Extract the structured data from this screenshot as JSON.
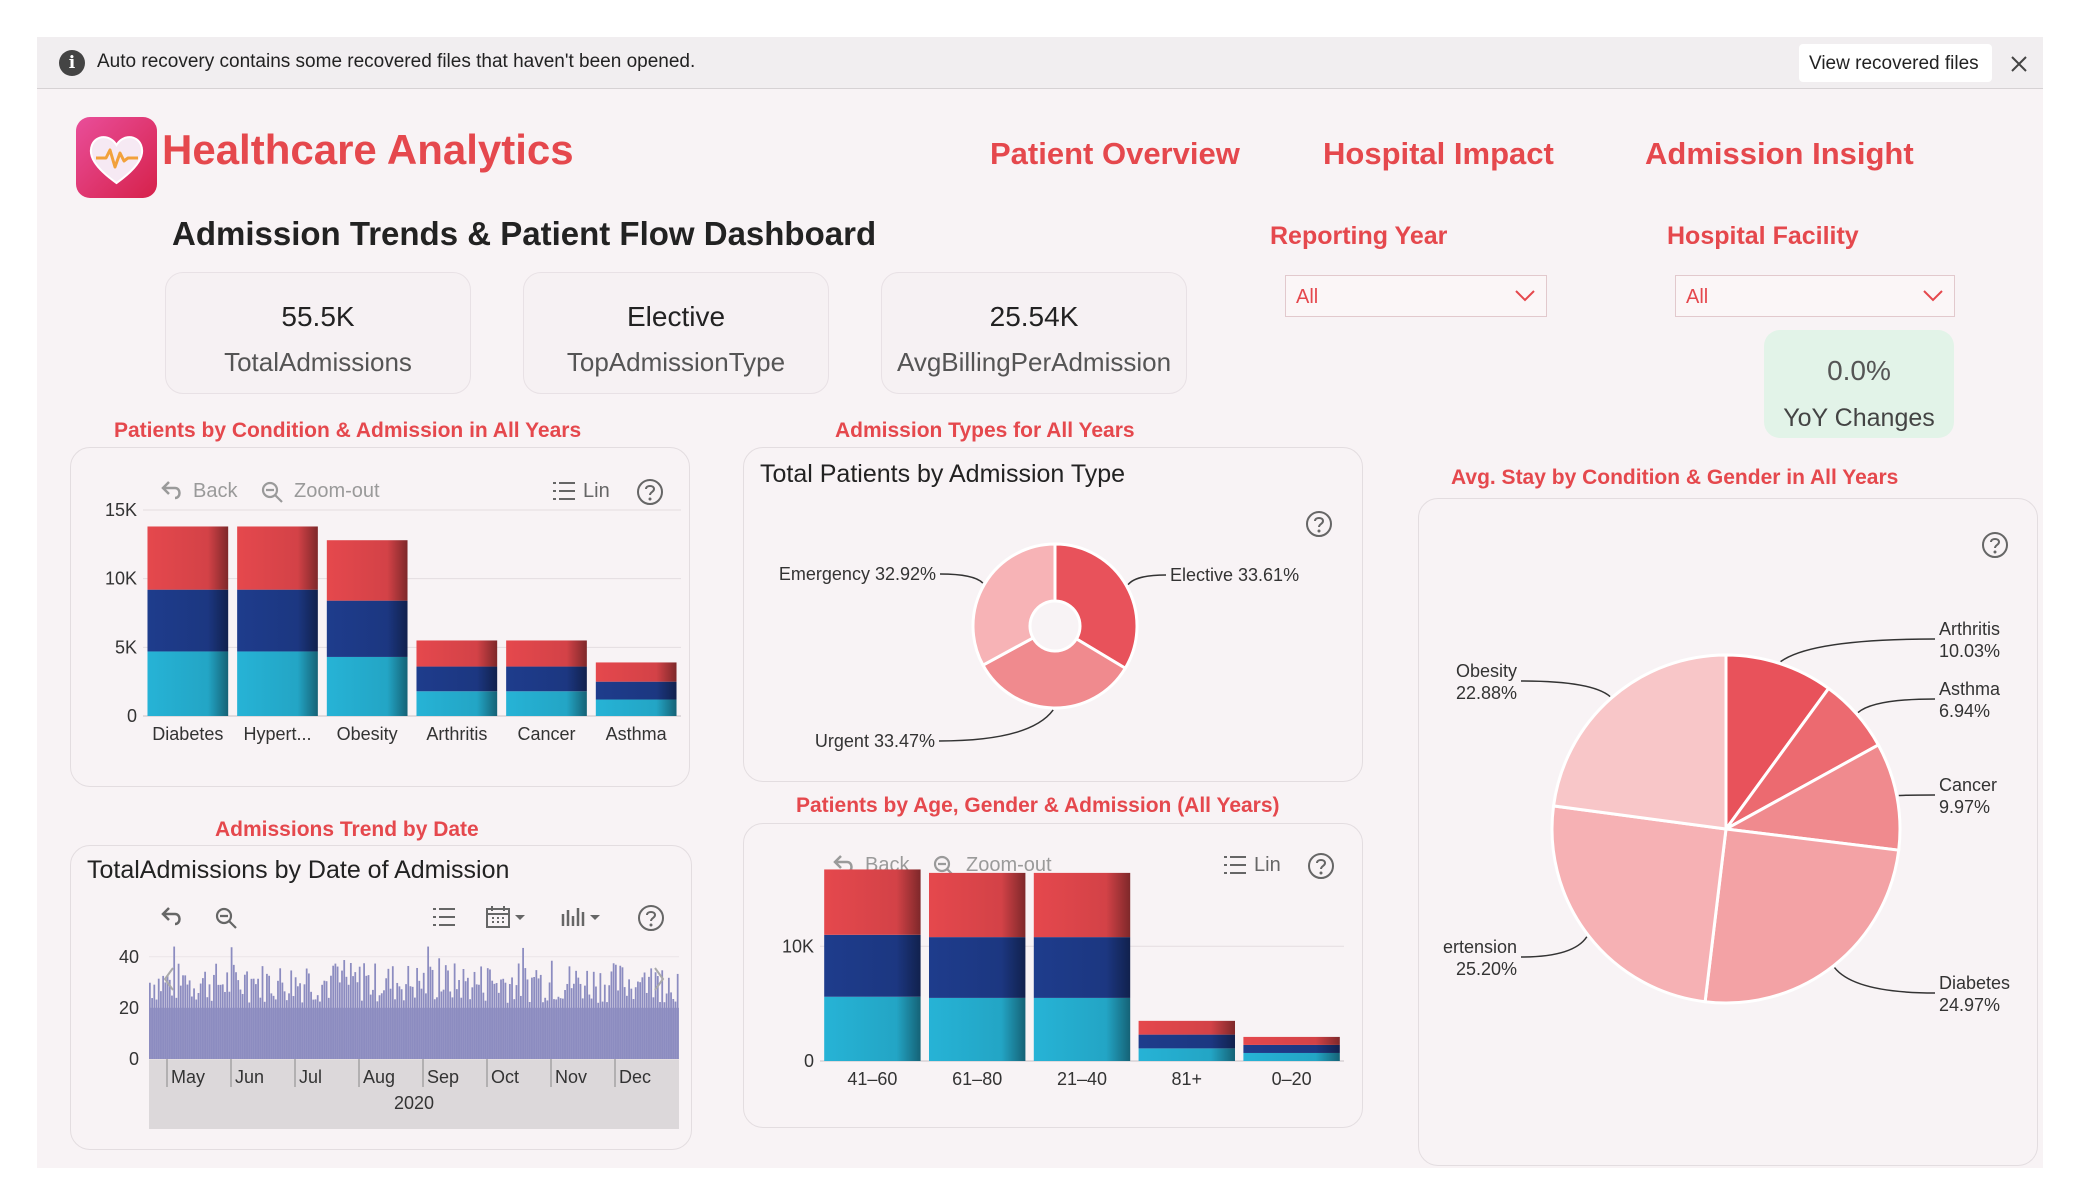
{
  "recovery": {
    "message": "Auto recovery contains some recovered files that haven't been opened.",
    "view_button": "View recovered files"
  },
  "app": {
    "title": "Healthcare Analytics"
  },
  "nav": {
    "items": [
      "Patient Overview",
      "Hospital Impact",
      "Admission Insight"
    ]
  },
  "dashboard": {
    "title": "Admission Trends & Patient Flow Dashboard"
  },
  "kpis": [
    {
      "value": "55.5K",
      "label": "TotalAdmissions"
    },
    {
      "value": "Elective",
      "label": "TopAdmissionType"
    },
    {
      "value": "25.54K",
      "label": "AvgBillingPerAdmission"
    }
  ],
  "filters": {
    "year": {
      "label": "Reporting Year",
      "value": "All"
    },
    "facility": {
      "label": "Hospital Facility",
      "value": "All"
    }
  },
  "yoy": {
    "value": "0.0%",
    "label": "YoY Changes"
  },
  "toolbar": {
    "back": "Back",
    "zoom_out": "Zoom-out",
    "lin": "Lin"
  },
  "colors": {
    "accent": "#e5484d",
    "navy": "#1e3c8c",
    "cyan": "#26b3d6",
    "violet": "#8c8cc0"
  },
  "sections": {
    "condition": "Patients by Condition & Admission in All Years",
    "types": "Admission Types for All Years",
    "stay": "Avg. Stay by Condition & Gender in All Years",
    "trend": "Admissions Trend by Date",
    "age": "Patients by Age, Gender & Admission (All Years)"
  },
  "chart_data": [
    {
      "type": "bar",
      "stacked": true,
      "categories": [
        "Diabetes",
        "Hypert...",
        "Obesity",
        "Arthritis",
        "Cancer",
        "Asthma"
      ],
      "series": [
        {
          "values": [
            4700,
            4700,
            4300,
            1800,
            1800,
            1200
          ],
          "color": "#26b3d6"
        },
        {
          "values": [
            4500,
            4500,
            4100,
            1800,
            1800,
            1300
          ],
          "color": "#1e3c8c"
        },
        {
          "values": [
            4600,
            4600,
            4400,
            1900,
            1900,
            1400
          ],
          "color": "#e5484d"
        }
      ],
      "yticks": [
        "0",
        "5K",
        "10K",
        "15K"
      ],
      "ytick_values": [
        0,
        5000,
        10000,
        15000
      ],
      "ylim": [
        0,
        15000
      ]
    },
    {
      "type": "pie",
      "donut": true,
      "title": "Total Patients by Admission Type",
      "slices": [
        {
          "label": "Elective 33.61%",
          "value": 33.61,
          "color": "#e8525b"
        },
        {
          "label": "Urgent 33.47%",
          "value": 33.47,
          "color": "#f08a8e"
        },
        {
          "label": "Emergency 32.92%",
          "value": 32.92,
          "color": "#f7b3b6"
        }
      ]
    },
    {
      "type": "pie",
      "slices": [
        {
          "label": "Arthritis",
          "pct": "10.03%",
          "value": 10.03,
          "color": "#e8525b"
        },
        {
          "label": "Asthma",
          "pct": "6.94%",
          "value": 6.94,
          "color": "#ec6a70"
        },
        {
          "label": "Cancer",
          "pct": "9.97%",
          "value": 9.97,
          "color": "#f08a8e"
        },
        {
          "label": "Diabetes",
          "pct": "24.97%",
          "value": 24.97,
          "color": "#f3a2a5"
        },
        {
          "label": "ertension",
          "pct": "25.20%",
          "value": 25.2,
          "color": "#f6b1b4"
        },
        {
          "label": "Obesity",
          "pct": "22.88%",
          "value": 22.88,
          "color": "#f8c6c8"
        }
      ]
    },
    {
      "type": "area",
      "title": "TotalAdmissions by Date of Admission",
      "months": [
        "May",
        "Jun",
        "Jul",
        "Aug",
        "Sep",
        "Oct",
        "Nov",
        "Dec"
      ],
      "year": "2020",
      "yticks": [
        "0",
        "20",
        "40"
      ],
      "ytick_values": [
        0,
        20,
        40
      ],
      "ylim": [
        0,
        45
      ],
      "approx_mean": 30
    },
    {
      "type": "bar",
      "stacked": true,
      "categories": [
        "41–60",
        "61–80",
        "21–40",
        "81+",
        "0–20"
      ],
      "series": [
        {
          "values": [
            5600,
            5500,
            5500,
            1100,
            700
          ],
          "color": "#26b3d6"
        },
        {
          "values": [
            5400,
            5300,
            5300,
            1200,
            700
          ],
          "color": "#1e3c8c"
        },
        {
          "values": [
            5700,
            5600,
            5600,
            1200,
            700
          ],
          "color": "#e5484d"
        }
      ],
      "yticks": [
        "0",
        "10K"
      ],
      "ytick_values": [
        0,
        10000
      ],
      "ylim": [
        0,
        17000
      ]
    }
  ]
}
